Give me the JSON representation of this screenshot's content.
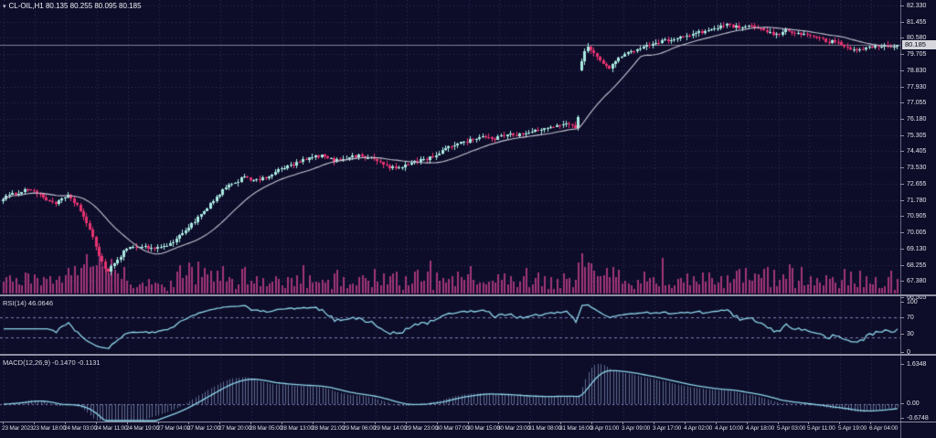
{
  "window": {
    "symbol_title": "CL-OIL,H1  80.135 80.255 80.095 80.185",
    "symbol": "CL-OIL",
    "timeframe": "H1"
  },
  "icons": {
    "chart_expand": "▾"
  },
  "chart_data": {
    "type": "candlestick",
    "title": "CL-OIL,H1",
    "ohlc_current": {
      "open": 80.135,
      "high": 80.255,
      "low": 80.095,
      "close": 80.185
    },
    "num_candles": 290,
    "price_axis": {
      "labels": [
        "82.330",
        "81.455",
        "80.580",
        "79.705",
        "78.830",
        "77.930",
        "77.055",
        "76.180",
        "75.305",
        "74.405",
        "73.530",
        "72.655",
        "71.780",
        "70.905",
        "70.005",
        "69.130",
        "68.255",
        "67.380",
        "66.505"
      ],
      "top_value": 82.33,
      "bottom_value": 66.505,
      "current_price_label": "80.185"
    },
    "time_labels": [
      "23 Mar 2023",
      "23 Mar 18:00",
      "24 Mar 03:00",
      "24 Mar 11:00",
      "24 Mar 19:00",
      "27 Mar 04:00",
      "27 Mar 12:00",
      "27 Mar 20:00",
      "28 Mar 05:00",
      "28 Mar 13:00",
      "28 Mar 21:00",
      "29 Mar 06:00",
      "29 Mar 14:00",
      "29 Mar 23:00",
      "30 Mar 07:00",
      "30 Mar 15:00",
      "30 Mar 23:00",
      "31 Mar 08:00",
      "31 Mar 16:00",
      "3 Apr 01:00",
      "3 Apr 09:00",
      "3 Apr 17:00",
      "4 Apr 02:00",
      "4 Apr 10:00",
      "4 Apr 18:00",
      "5 Apr 03:00",
      "5 Apr 11:00",
      "5 Apr 19:00",
      "6 Apr 04:00"
    ],
    "price_path_waypoints": [
      [
        0.0,
        71.9
      ],
      [
        0.012,
        72.1
      ],
      [
        0.03,
        72.4
      ],
      [
        0.048,
        71.8
      ],
      [
        0.06,
        71.6
      ],
      [
        0.072,
        72.0
      ],
      [
        0.085,
        71.4
      ],
      [
        0.098,
        70.0
      ],
      [
        0.108,
        68.7
      ],
      [
        0.117,
        67.8
      ],
      [
        0.124,
        68.3
      ],
      [
        0.135,
        69.0
      ],
      [
        0.15,
        69.3
      ],
      [
        0.168,
        69.15
      ],
      [
        0.188,
        69.4
      ],
      [
        0.205,
        70.2
      ],
      [
        0.22,
        70.9
      ],
      [
        0.235,
        71.7
      ],
      [
        0.247,
        72.4
      ],
      [
        0.26,
        72.7
      ],
      [
        0.27,
        73.1
      ],
      [
        0.282,
        72.8
      ],
      [
        0.295,
        73.0
      ],
      [
        0.31,
        73.45
      ],
      [
        0.325,
        73.7
      ],
      [
        0.34,
        74.0
      ],
      [
        0.355,
        74.2
      ],
      [
        0.37,
        73.9
      ],
      [
        0.385,
        74.1
      ],
      [
        0.4,
        74.2
      ],
      [
        0.415,
        74.0
      ],
      [
        0.43,
        73.6
      ],
      [
        0.445,
        73.5
      ],
      [
        0.46,
        73.9
      ],
      [
        0.475,
        74.0
      ],
      [
        0.49,
        74.4
      ],
      [
        0.505,
        74.8
      ],
      [
        0.52,
        75.0
      ],
      [
        0.535,
        75.2
      ],
      [
        0.55,
        75.1
      ],
      [
        0.565,
        75.4
      ],
      [
        0.58,
        75.3
      ],
      [
        0.6,
        75.6
      ],
      [
        0.615,
        75.7
      ],
      [
        0.63,
        76.0
      ],
      [
        0.643,
        75.7
      ],
      [
        0.6475,
        79.7
      ],
      [
        0.655,
        80.1
      ],
      [
        0.663,
        79.6
      ],
      [
        0.67,
        79.2
      ],
      [
        0.678,
        78.9
      ],
      [
        0.686,
        79.4
      ],
      [
        0.695,
        79.6
      ],
      [
        0.705,
        79.9
      ],
      [
        0.715,
        80.1
      ],
      [
        0.73,
        80.3
      ],
      [
        0.745,
        80.5
      ],
      [
        0.76,
        80.6
      ],
      [
        0.775,
        80.8
      ],
      [
        0.79,
        81.0
      ],
      [
        0.802,
        81.2
      ],
      [
        0.812,
        81.3
      ],
      [
        0.825,
        81.1
      ],
      [
        0.84,
        81.2
      ],
      [
        0.855,
        80.9
      ],
      [
        0.865,
        80.7
      ],
      [
        0.875,
        81.0
      ],
      [
        0.89,
        80.8
      ],
      [
        0.905,
        80.7
      ],
      [
        0.92,
        80.4
      ],
      [
        0.935,
        80.3
      ],
      [
        0.95,
        79.9
      ],
      [
        0.962,
        80.0
      ],
      [
        0.975,
        80.1
      ],
      [
        1.0,
        80.185
      ]
    ],
    "gap": {
      "before_close": 75.7,
      "after_open": 79.7,
      "at_time_label": "3 Apr 01:00"
    },
    "moving_average": {
      "type": "SMA",
      "period": 20
    },
    "volume": {
      "style": "histogram at bottom of price panel"
    },
    "indicators": [
      {
        "name": "RSI",
        "params": "14",
        "label": "RSI(14) 46.0646",
        "value": 46.0646,
        "range": [
          0,
          100
        ],
        "levels": [
          70,
          30
        ],
        "axis_labels": [
          "100",
          "70",
          "30",
          "0"
        ]
      },
      {
        "name": "MACD",
        "params": "12,26,9",
        "label": "MACD(12,26,9) -0.1470 -0.1131",
        "values": [
          -0.147,
          -0.1131
        ],
        "axis_labels": [
          "1.6348",
          "0.00",
          "-0.6748"
        ],
        "axis_max": 1.6348,
        "axis_min": -0.6748
      }
    ]
  },
  "colors": {
    "background": "#0d0d29",
    "grid": "rgba(105,105,170,0.38)",
    "candle_up": "#aaeae2",
    "candle_down": "#e83370",
    "moving_average": "#c4c4d4",
    "volume": "#a03578",
    "indicator_line": "#8ed6ea",
    "macd_histogram": "rgba(150,170,215,0.6)",
    "level_lines": "#8080b8",
    "bid_line": "rgba(170,170,190,0.75)",
    "axis_text": "#e2e2ec",
    "price_tag_bg": "#d6d6dc",
    "price_tag_text": "#07071c",
    "divider": "#8f8fa5"
  }
}
